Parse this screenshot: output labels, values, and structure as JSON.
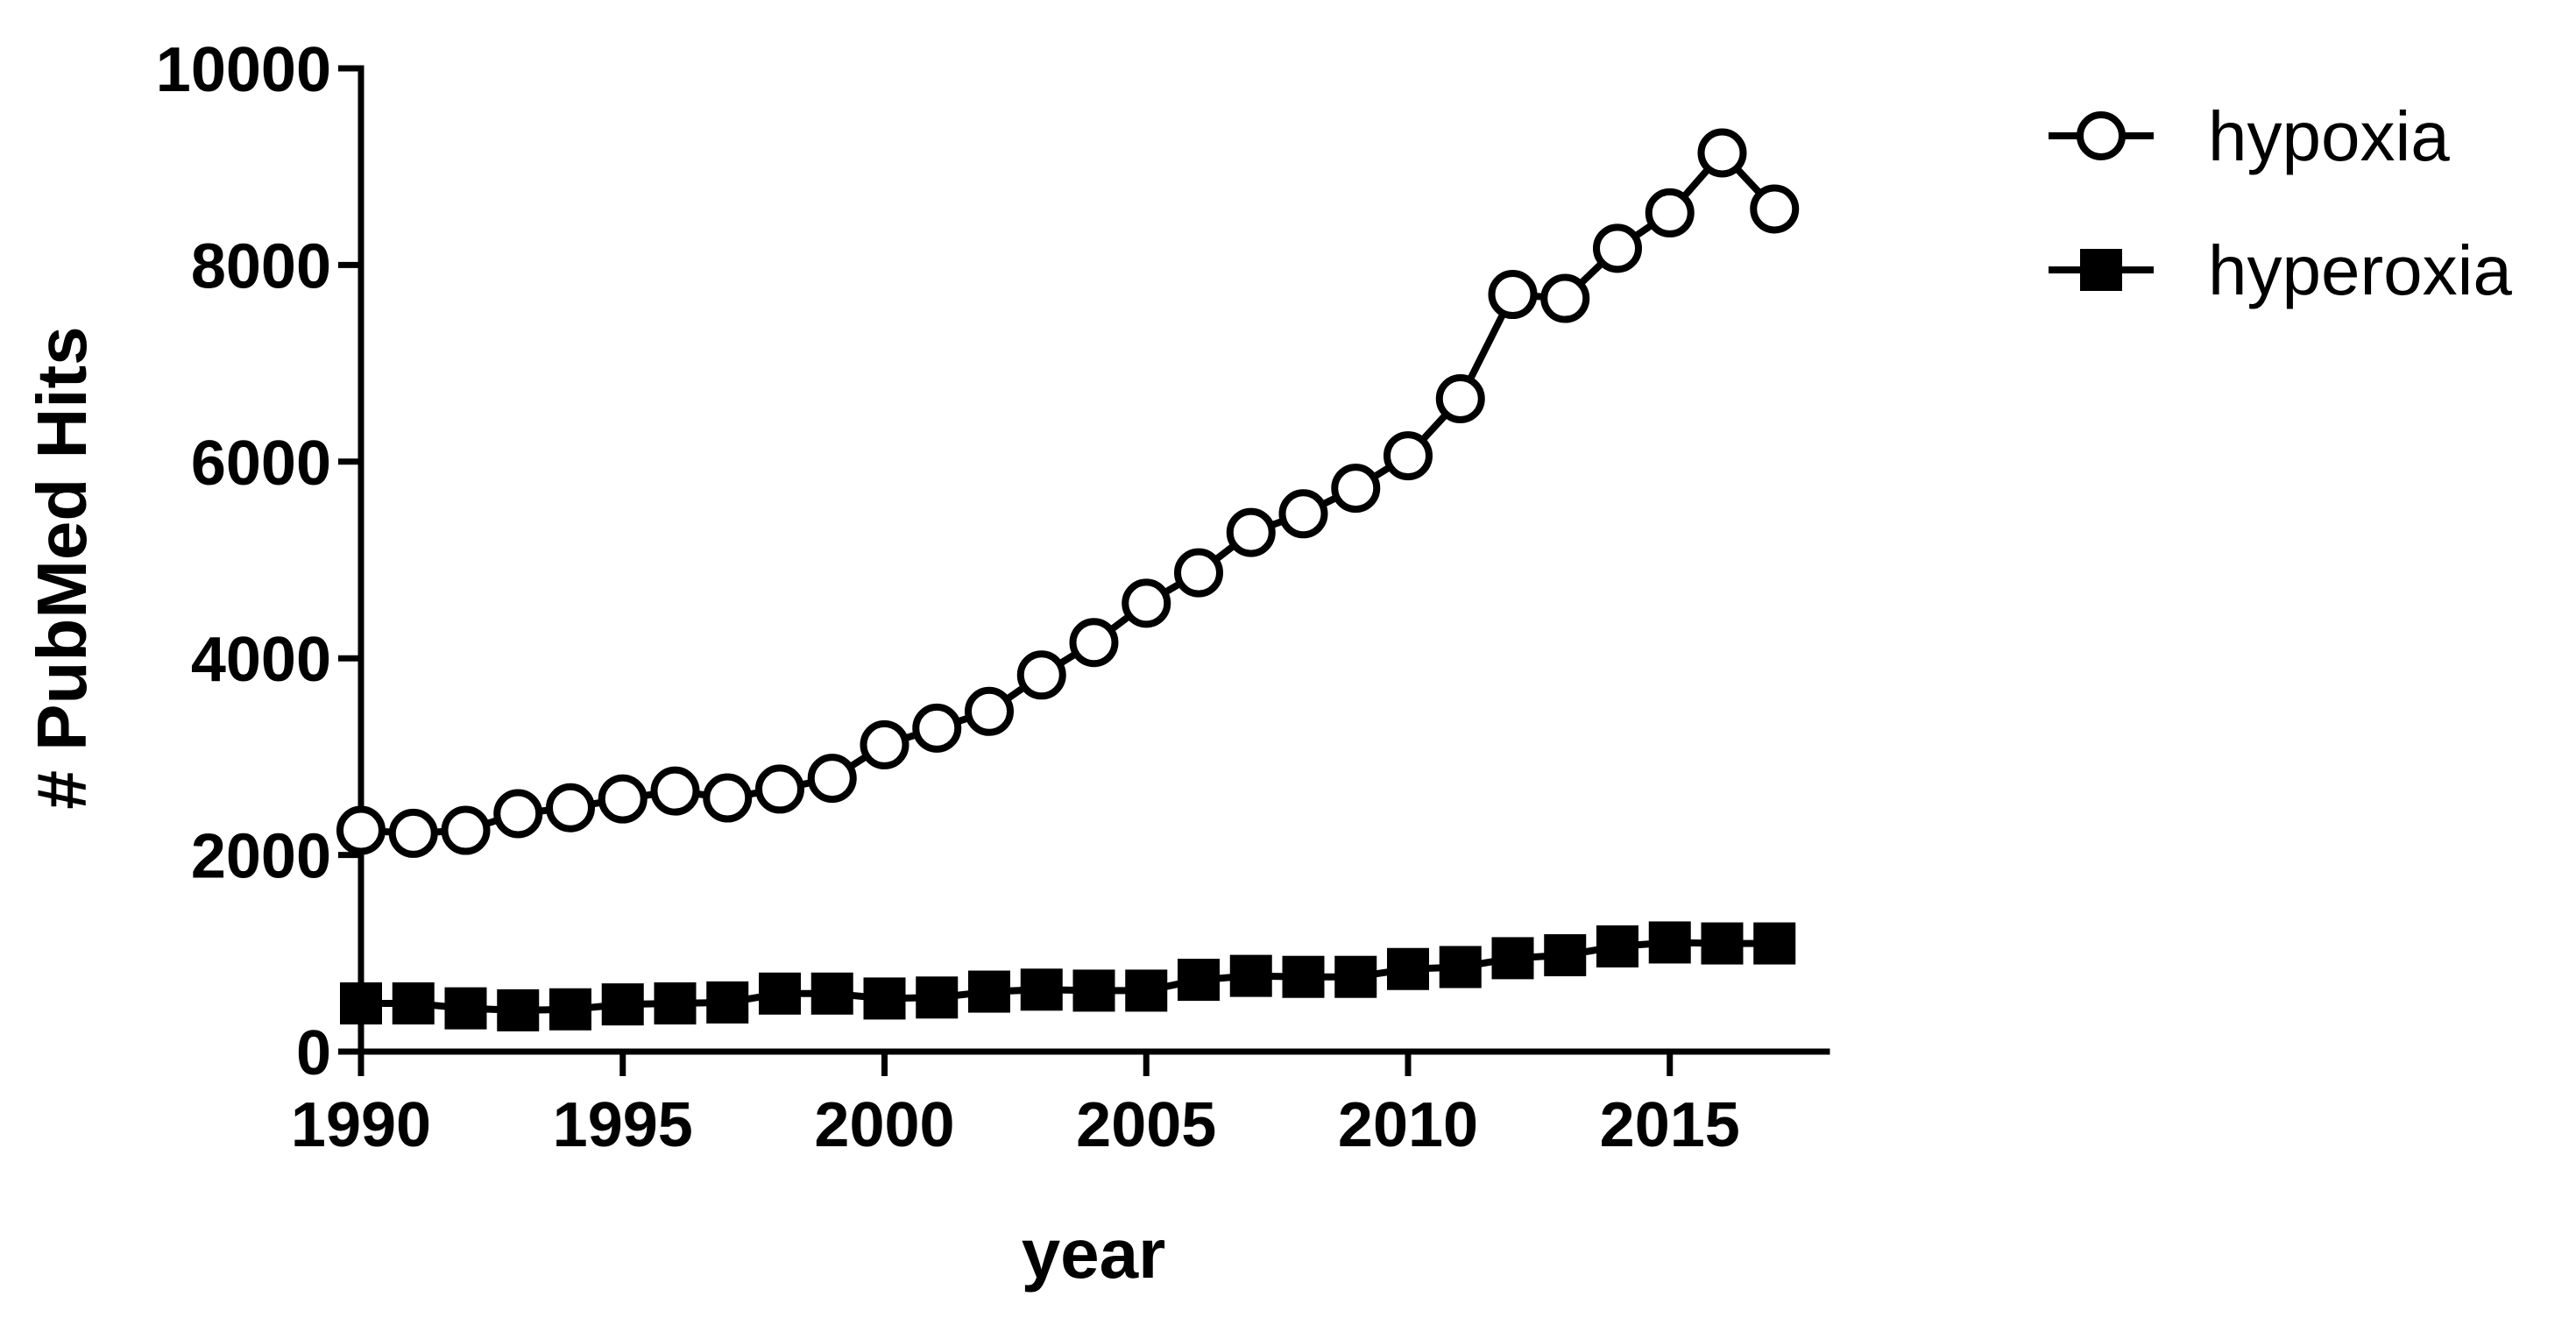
{
  "chart_data": {
    "type": "line",
    "title": "",
    "xlabel": "year",
    "ylabel": "# PubMed Hits",
    "xlim": [
      1990,
      2018
    ],
    "ylim": [
      0,
      10000
    ],
    "xticks": [
      "1990",
      "1995",
      "2000",
      "2005",
      "2010",
      "2015"
    ],
    "yticks": [
      "0",
      "2000",
      "4000",
      "6000",
      "8000",
      "10000"
    ],
    "x": [
      1990,
      1991,
      1992,
      1993,
      1994,
      1995,
      1996,
      1997,
      1998,
      1999,
      2000,
      2001,
      2002,
      2003,
      2004,
      2005,
      2006,
      2007,
      2008,
      2009,
      2010,
      2011,
      2012,
      2013,
      2014,
      2015,
      2016,
      2017
    ],
    "series": [
      {
        "name": "hypoxia",
        "marker": "open-circle",
        "color": "#000000",
        "values": [
          2250,
          2220,
          2250,
          2420,
          2480,
          2570,
          2650,
          2580,
          2670,
          2780,
          3120,
          3290,
          3460,
          3830,
          4160,
          4560,
          4870,
          5280,
          5470,
          5730,
          6060,
          6640,
          7700,
          7660,
          8170,
          8530,
          9140,
          8570
        ]
      },
      {
        "name": "hyperoxia",
        "marker": "filled-square",
        "color": "#000000",
        "values": [
          490,
          490,
          440,
          420,
          430,
          480,
          490,
          500,
          590,
          590,
          540,
          550,
          610,
          630,
          620,
          620,
          730,
          770,
          760,
          760,
          840,
          860,
          950,
          980,
          1070,
          1110,
          1100,
          1100
        ]
      }
    ],
    "grid": false,
    "legend_position": "top-right"
  }
}
